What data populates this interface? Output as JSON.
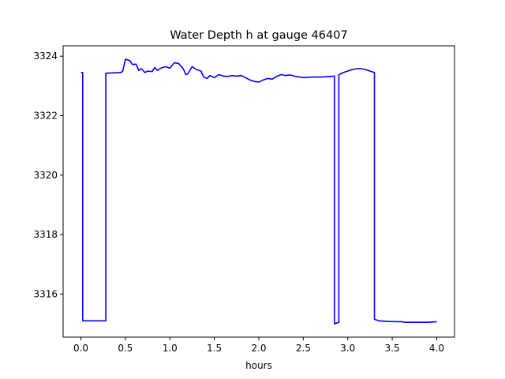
{
  "chart_data": {
    "type": "line",
    "title": "Water Depth h at gauge 46407",
    "xlabel": "hours",
    "ylabel": "",
    "xlim": [
      -0.2,
      4.2
    ],
    "ylim": [
      3314.55,
      3324.35
    ],
    "grid": false,
    "x_ticks": [
      0.0,
      0.5,
      1.0,
      1.5,
      2.0,
      2.5,
      3.0,
      3.5,
      4.0
    ],
    "x_tick_labels": [
      "0.0",
      "0.5",
      "1.0",
      "1.5",
      "2.0",
      "2.5",
      "3.0",
      "3.5",
      "4.0"
    ],
    "y_ticks": [
      3316,
      3318,
      3320,
      3322,
      3324
    ],
    "y_tick_labels": [
      "3316",
      "3318",
      "3320",
      "3322",
      "3324"
    ],
    "series": [
      {
        "color": "#0000ff",
        "x": [
          0.0,
          0.02,
          0.02,
          0.28,
          0.28,
          0.45,
          0.47,
          0.5,
          0.55,
          0.58,
          0.62,
          0.65,
          0.68,
          0.72,
          0.75,
          0.8,
          0.83,
          0.86,
          0.9,
          0.95,
          1.0,
          1.05,
          1.1,
          1.15,
          1.18,
          1.2,
          1.25,
          1.3,
          1.35,
          1.38,
          1.42,
          1.45,
          1.5,
          1.55,
          1.6,
          1.65,
          1.7,
          1.75,
          1.8,
          1.85,
          1.9,
          1.95,
          2.0,
          2.05,
          2.1,
          2.15,
          2.2,
          2.25,
          2.3,
          2.35,
          2.4,
          2.5,
          2.6,
          2.7,
          2.8,
          2.85,
          2.85,
          2.9,
          2.9,
          2.95,
          3.0,
          3.05,
          3.1,
          3.15,
          3.2,
          3.3,
          3.3,
          3.35,
          3.45,
          3.55,
          3.6,
          3.65,
          3.7,
          3.8,
          3.9,
          4.0
        ],
        "y": [
          3323.45,
          3323.45,
          3315.1,
          3315.1,
          3323.43,
          3323.45,
          3323.5,
          3323.9,
          3323.85,
          3323.72,
          3323.73,
          3323.52,
          3323.58,
          3323.45,
          3323.5,
          3323.48,
          3323.62,
          3323.52,
          3323.6,
          3323.65,
          3323.6,
          3323.78,
          3323.75,
          3323.58,
          3323.38,
          3323.4,
          3323.65,
          3323.55,
          3323.5,
          3323.3,
          3323.25,
          3323.35,
          3323.28,
          3323.38,
          3323.33,
          3323.32,
          3323.35,
          3323.33,
          3323.35,
          3323.28,
          3323.2,
          3323.15,
          3323.13,
          3323.2,
          3323.25,
          3323.23,
          3323.32,
          3323.38,
          3323.35,
          3323.37,
          3323.33,
          3323.28,
          3323.3,
          3323.3,
          3323.32,
          3323.33,
          3315.0,
          3315.05,
          3323.38,
          3323.45,
          3323.5,
          3323.55,
          3323.58,
          3323.58,
          3323.55,
          3323.45,
          3315.15,
          3315.1,
          3315.08,
          3315.07,
          3315.07,
          3315.05,
          3315.05,
          3315.05,
          3315.05,
          3315.07
        ]
      }
    ]
  }
}
